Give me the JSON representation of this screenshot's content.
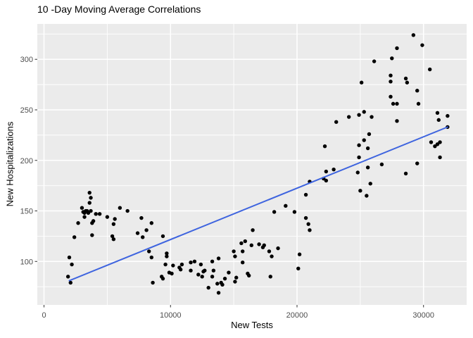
{
  "chart_data": {
    "type": "scatter",
    "title": "10 -Day Moving Average Correlations",
    "xlabel": "New Tests",
    "ylabel": "New Hospitalizations",
    "x_ticks": [
      0,
      10000,
      20000,
      30000
    ],
    "x_tick_labels": [
      "0",
      "10000",
      "20000",
      "30000"
    ],
    "x_minor": [
      5000,
      15000,
      25000
    ],
    "y_ticks": [
      100,
      150,
      200,
      250,
      300
    ],
    "y_tick_labels": [
      "100",
      "150",
      "200",
      "250",
      "300"
    ],
    "y_minor": [
      75,
      125,
      175,
      225,
      275,
      325
    ],
    "x_domain": [
      -530,
      33410
    ],
    "y_domain": [
      57,
      335
    ],
    "grid": true,
    "legend_position": "none",
    "colors": {
      "panel_bg": "#EBEBEB",
      "grid": "#FFFFFF",
      "point": "#000000",
      "trend": "#3E64DF",
      "tick_mark": "#333333",
      "tick_text": "#4D4D4D",
      "title_text": "#000000"
    },
    "trend_line": {
      "type": "linear",
      "x1": 2000,
      "y1": 81,
      "x2": 31900,
      "y2": 233
    },
    "points": [
      [
        2000,
        104
      ],
      [
        2200,
        97
      ],
      [
        1900,
        85
      ],
      [
        2100,
        79
      ],
      [
        2400,
        124
      ],
      [
        2700,
        138
      ],
      [
        3000,
        153
      ],
      [
        3100,
        149
      ],
      [
        3200,
        148
      ],
      [
        3300,
        150
      ],
      [
        3400,
        150
      ],
      [
        3500,
        148
      ],
      [
        3200,
        144
      ],
      [
        3600,
        168
      ],
      [
        3700,
        163
      ],
      [
        3600,
        158
      ],
      [
        3700,
        150
      ],
      [
        3800,
        138
      ],
      [
        3900,
        140
      ],
      [
        3800,
        126
      ],
      [
        4100,
        147
      ],
      [
        4400,
        147
      ],
      [
        5000,
        144
      ],
      [
        5500,
        137
      ],
      [
        5600,
        142
      ],
      [
        5400,
        125
      ],
      [
        5500,
        122
      ],
      [
        6000,
        153
      ],
      [
        6600,
        150
      ],
      [
        7400,
        128
      ],
      [
        7700,
        143
      ],
      [
        7800,
        124
      ],
      [
        8100,
        131
      ],
      [
        8500,
        138
      ],
      [
        8300,
        110
      ],
      [
        8500,
        104
      ],
      [
        8600,
        79
      ],
      [
        9300,
        85
      ],
      [
        9400,
        83
      ],
      [
        9400,
        125
      ],
      [
        9700,
        108
      ],
      [
        9700,
        105
      ],
      [
        9600,
        97
      ],
      [
        10200,
        96
      ],
      [
        9900,
        89
      ],
      [
        10100,
        88
      ],
      [
        10700,
        94
      ],
      [
        10800,
        92
      ],
      [
        10900,
        97
      ],
      [
        11600,
        99
      ],
      [
        11600,
        91
      ],
      [
        11900,
        100
      ],
      [
        12200,
        87
      ],
      [
        12400,
        97
      ],
      [
        12600,
        90
      ],
      [
        12700,
        91
      ],
      [
        12500,
        85
      ],
      [
        13000,
        74
      ],
      [
        13300,
        100
      ],
      [
        13400,
        91
      ],
      [
        13300,
        85
      ],
      [
        13800,
        103
      ],
      [
        13700,
        78
      ],
      [
        13800,
        69
      ],
      [
        14000,
        79
      ],
      [
        14100,
        77
      ],
      [
        14300,
        83
      ],
      [
        14600,
        89
      ],
      [
        15000,
        110
      ],
      [
        15100,
        105
      ],
      [
        15100,
        80
      ],
      [
        15200,
        84
      ],
      [
        15600,
        118
      ],
      [
        15700,
        110
      ],
      [
        15700,
        99
      ],
      [
        15900,
        120
      ],
      [
        16100,
        88
      ],
      [
        16200,
        86
      ],
      [
        16400,
        116
      ],
      [
        16500,
        131
      ],
      [
        17000,
        117
      ],
      [
        17300,
        114
      ],
      [
        17400,
        116
      ],
      [
        17800,
        110
      ],
      [
        18000,
        105
      ],
      [
        18500,
        113
      ],
      [
        18200,
        149
      ],
      [
        19100,
        155
      ],
      [
        19800,
        149
      ],
      [
        17900,
        85
      ],
      [
        20200,
        107
      ],
      [
        20100,
        93
      ],
      [
        20700,
        166
      ],
      [
        20700,
        143
      ],
      [
        20900,
        137
      ],
      [
        21000,
        131
      ],
      [
        21000,
        179
      ],
      [
        22100,
        182
      ],
      [
        22300,
        189
      ],
      [
        22300,
        180
      ],
      [
        22900,
        191
      ],
      [
        24800,
        188
      ],
      [
        25000,
        170
      ],
      [
        25600,
        193
      ],
      [
        26700,
        196
      ],
      [
        29500,
        197
      ],
      [
        28600,
        187
      ],
      [
        25800,
        177
      ],
      [
        25500,
        165
      ],
      [
        26100,
        298
      ],
      [
        25100,
        277
      ],
      [
        25300,
        248
      ],
      [
        24900,
        245
      ],
      [
        24100,
        243
      ],
      [
        25900,
        243
      ],
      [
        23100,
        238
      ],
      [
        25700,
        226
      ],
      [
        25300,
        220
      ],
      [
        24900,
        215
      ],
      [
        22200,
        214
      ],
      [
        25600,
        212
      ],
      [
        24900,
        203
      ],
      [
        29200,
        324
      ],
      [
        29900,
        314
      ],
      [
        27900,
        311
      ],
      [
        27500,
        301
      ],
      [
        30500,
        290
      ],
      [
        27400,
        284
      ],
      [
        28600,
        281
      ],
      [
        28700,
        277
      ],
      [
        27400,
        278
      ],
      [
        29500,
        269
      ],
      [
        27400,
        263
      ],
      [
        27600,
        256
      ],
      [
        27900,
        256
      ],
      [
        29600,
        256
      ],
      [
        27900,
        239
      ],
      [
        31100,
        247
      ],
      [
        31900,
        244
      ],
      [
        31200,
        240
      ],
      [
        31900,
        233
      ],
      [
        30600,
        218
      ],
      [
        30900,
        214
      ],
      [
        31100,
        216
      ],
      [
        31300,
        218
      ],
      [
        31300,
        203
      ]
    ]
  }
}
